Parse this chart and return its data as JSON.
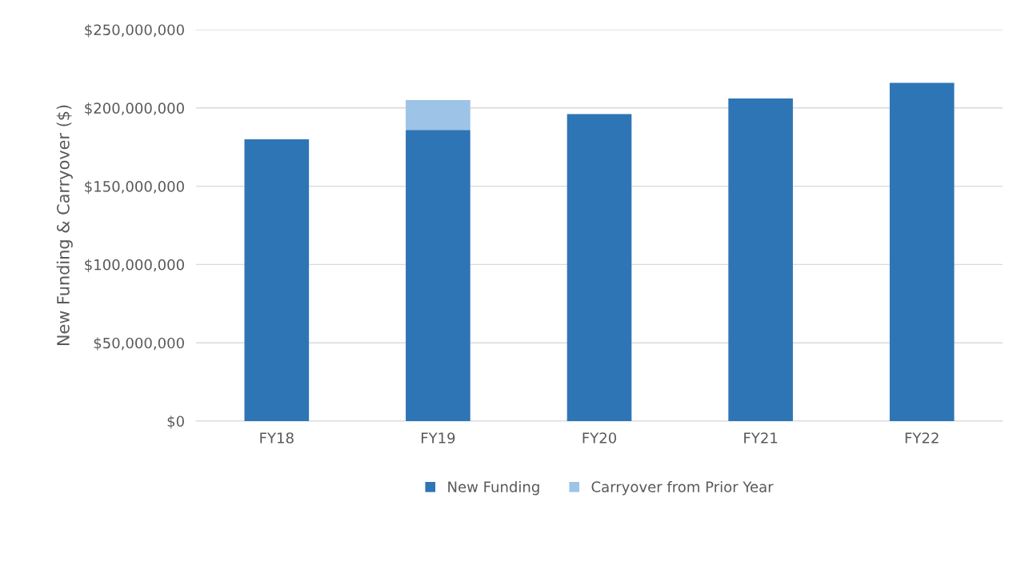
{
  "chart_data": {
    "type": "bar",
    "ylabel": "New Funding & Carryover ($)",
    "categories": [
      "FY18",
      "FY19",
      "FY20",
      "FY21",
      "FY22"
    ],
    "stacked": true,
    "series": [
      {
        "name": "New Funding",
        "color": "#2e75b6",
        "values": [
          180000000,
          186000000,
          196000000,
          206000000,
          216000000
        ]
      },
      {
        "name": "Carryover from Prior Year",
        "color": "#9dc3e6",
        "values": [
          null,
          19000000,
          null,
          null,
          null
        ]
      }
    ],
    "ylim": [
      0,
      250000000
    ],
    "yticks": [
      {
        "value": 0,
        "label": "$0"
      },
      {
        "value": 50000000,
        "label": "$50,000,000"
      },
      {
        "value": 100000000,
        "label": "$100,000,000"
      },
      {
        "value": 150000000,
        "label": "$150,000,000"
      },
      {
        "value": 200000000,
        "label": "$200,000,000"
      },
      {
        "value": 250000000,
        "label": "$250,000,000"
      }
    ],
    "grid": "y",
    "legend": "bottom"
  }
}
